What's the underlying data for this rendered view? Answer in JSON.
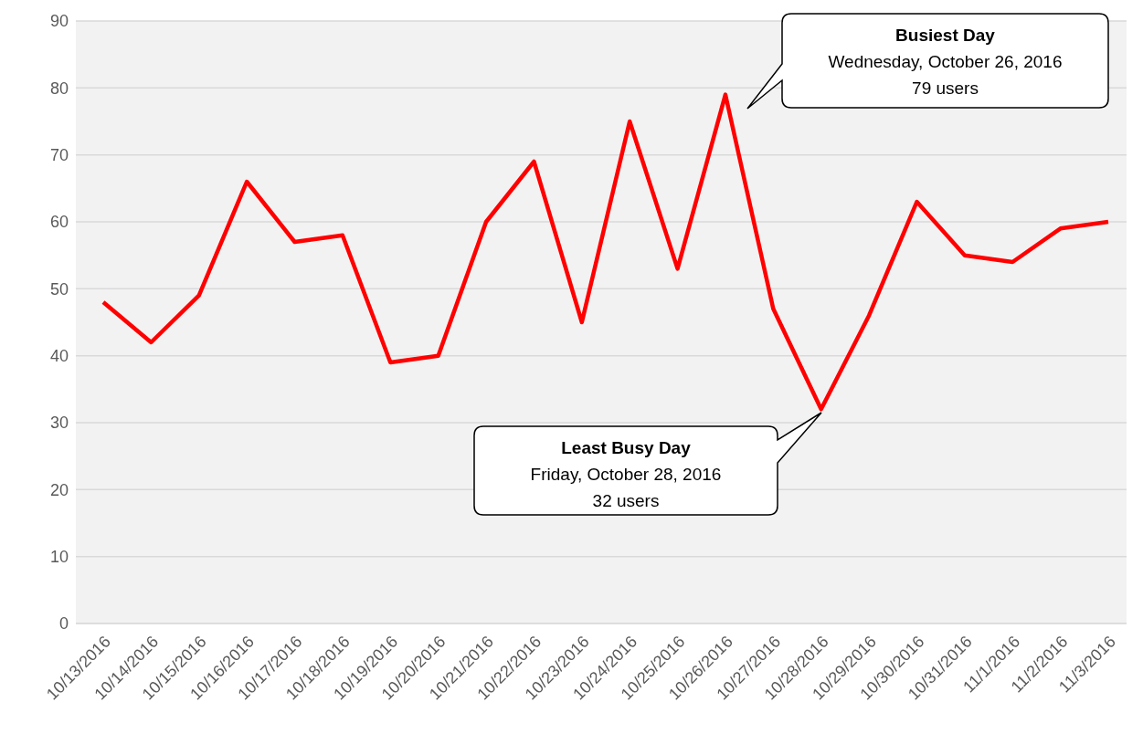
{
  "chart_data": {
    "type": "line",
    "categories": [
      "10/13/2016",
      "10/14/2016",
      "10/15/2016",
      "10/16/2016",
      "10/17/2016",
      "10/18/2016",
      "10/19/2016",
      "10/20/2016",
      "10/21/2016",
      "10/22/2016",
      "10/23/2016",
      "10/24/2016",
      "10/25/2016",
      "10/26/2016",
      "10/27/2016",
      "10/28/2016",
      "10/29/2016",
      "10/30/2016",
      "10/31/2016",
      "11/1/2016",
      "11/2/2016",
      "11/3/2016"
    ],
    "series": [
      {
        "color": "#ff0000",
        "values": [
          48,
          42,
          49,
          66,
          57,
          58,
          39,
          40,
          60,
          69,
          45,
          75,
          53,
          79,
          47,
          32,
          46,
          63,
          55,
          54,
          59,
          60
        ]
      }
    ],
    "ylim": [
      0,
      90
    ],
    "yticks": [
      0,
      10,
      20,
      30,
      40,
      50,
      60,
      70,
      80,
      90
    ],
    "grid": "y",
    "legend": false,
    "marker": "none",
    "line_style": "solid",
    "annotations": [
      "Busiest Day\nWednesday, October 26, 2016\n79 users",
      "Least Busy Day\nFriday, October 28, 2016\n32 users"
    ]
  }
}
